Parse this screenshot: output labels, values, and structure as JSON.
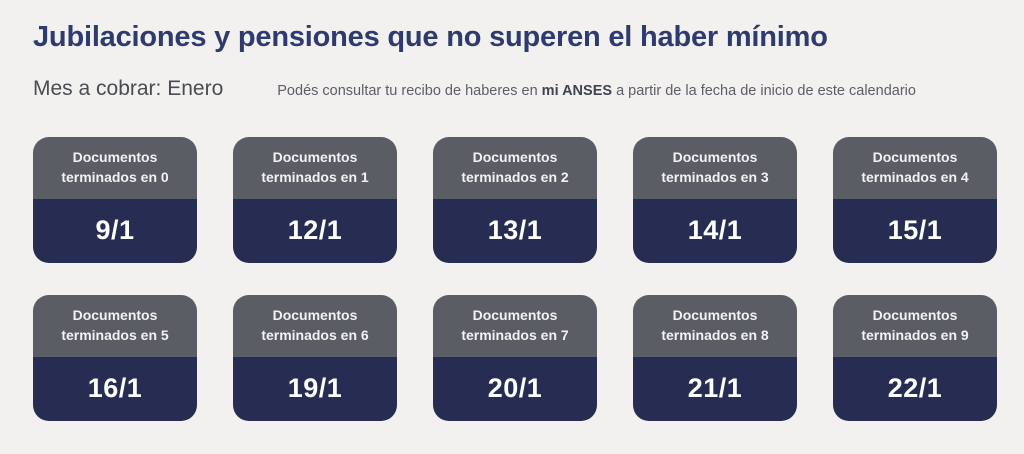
{
  "header": {
    "title": "Jubilaciones y pensiones que no superen el haber mínimo",
    "subtitle": "Mes a cobrar: Enero",
    "note_pre": "Podés consultar tu recibo de haberes en ",
    "note_bold": "mi ANSES",
    "note_post": " a partir de la fecha de inicio de este calendario"
  },
  "colors": {
    "title_text": "#2d3b6f",
    "card_header_bg": "#5a5d64",
    "card_body_bg": "#262c52",
    "page_background": "#f2f1f0"
  },
  "cards": [
    {
      "label": "Documentos terminados en 0",
      "date": "9/1"
    },
    {
      "label": "Documentos terminados en 1",
      "date": "12/1"
    },
    {
      "label": "Documentos terminados en 2",
      "date": "13/1"
    },
    {
      "label": "Documentos terminados en 3",
      "date": "14/1"
    },
    {
      "label": "Documentos terminados en 4",
      "date": "15/1"
    },
    {
      "label": "Documentos terminados en 5",
      "date": "16/1"
    },
    {
      "label": "Documentos terminados en 6",
      "date": "19/1"
    },
    {
      "label": "Documentos terminados en 7",
      "date": "20/1"
    },
    {
      "label": "Documentos terminados en 8",
      "date": "21/1"
    },
    {
      "label": "Documentos terminados en 9",
      "date": "22/1"
    }
  ]
}
